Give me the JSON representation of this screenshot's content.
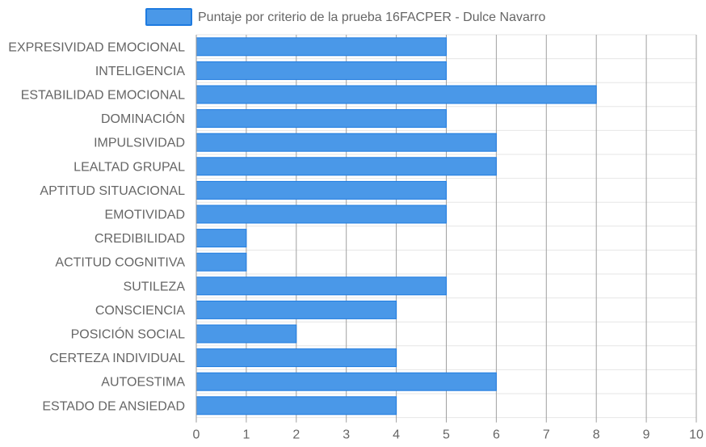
{
  "chart_data": {
    "type": "bar",
    "orientation": "horizontal",
    "title": "",
    "xlabel": "",
    "ylabel": "",
    "categories": [
      "EXPRESIVIDAD EMOCIONAL",
      "INTELIGENCIA",
      "ESTABILIDAD EMOCIONAL",
      "DOMINACIÓN",
      "IMPULSIVIDAD",
      "LEALTAD GRUPAL",
      "APTITUD SITUACIONAL",
      "EMOTIVIDAD",
      "CREDIBILIDAD",
      "ACTITUD COGNITIVA",
      "SUTILEZA",
      "CONSCIENCIA",
      "POSICIÓN SOCIAL",
      "CERTEZA INDIVIDUAL",
      "AUTOESTIMA",
      "ESTADO DE ANSIEDAD"
    ],
    "series": [
      {
        "name": "Puntaje por criterio de la prueba 16FACPER - Dulce Navarro",
        "values": [
          5,
          5,
          8,
          5,
          6,
          6,
          5,
          5,
          1,
          1,
          5,
          4,
          2,
          4,
          6,
          4
        ],
        "color": "#4a98e8",
        "border_color": "#1e7be0"
      }
    ],
    "xlim": [
      0,
      10
    ],
    "x_ticks": [
      0,
      1,
      2,
      3,
      4,
      5,
      6,
      7,
      8,
      9,
      10
    ],
    "grid": true,
    "legend_position": "top"
  }
}
